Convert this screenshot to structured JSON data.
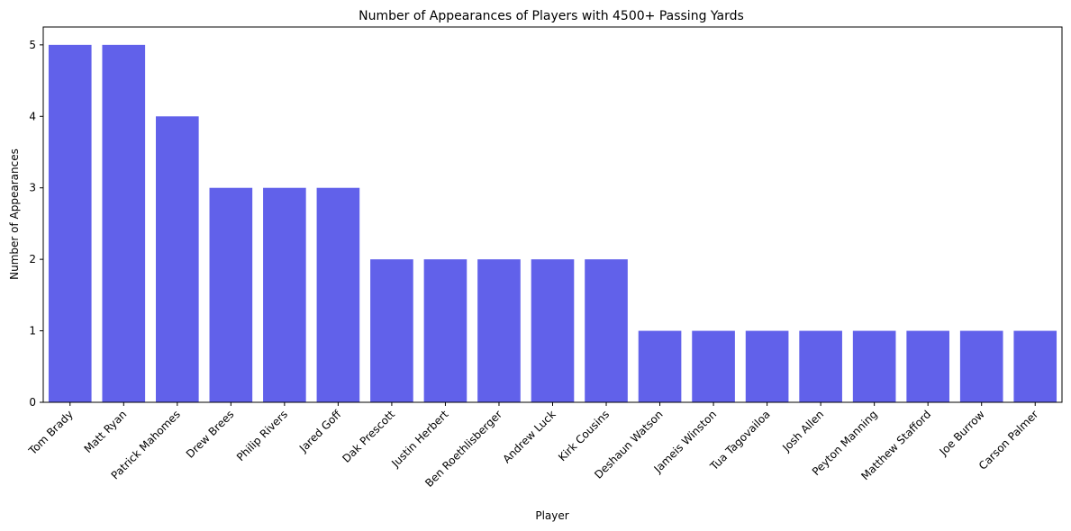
{
  "chart_data": {
    "type": "bar",
    "title": "Number of Appearances of Players with 4500+ Passing Yards",
    "xlabel": "Player",
    "ylabel": "Number of Appearances",
    "categories": [
      "Tom Brady",
      "Matt Ryan",
      "Patrick Mahomes",
      "Drew Brees",
      "Philip Rivers",
      "Jared Goff",
      "Dak Prescott",
      "Justin Herbert",
      "Ben Roethlisberger",
      "Andrew Luck",
      "Kirk Cousins",
      "Deshaun Watson",
      "Jameis Winston",
      "Tua Tagovailoa",
      "Josh Allen",
      "Peyton Manning",
      "Matthew Stafford",
      "Joe Burrow",
      "Carson Palmer"
    ],
    "values": [
      5,
      5,
      4,
      3,
      3,
      3,
      2,
      2,
      2,
      2,
      2,
      1,
      1,
      1,
      1,
      1,
      1,
      1,
      1
    ],
    "ylim": [
      0,
      5.25
    ],
    "yticks": [
      0,
      1,
      2,
      3,
      4,
      5
    ],
    "bar_color": "#6161ea",
    "grid": false,
    "legend": "none"
  }
}
